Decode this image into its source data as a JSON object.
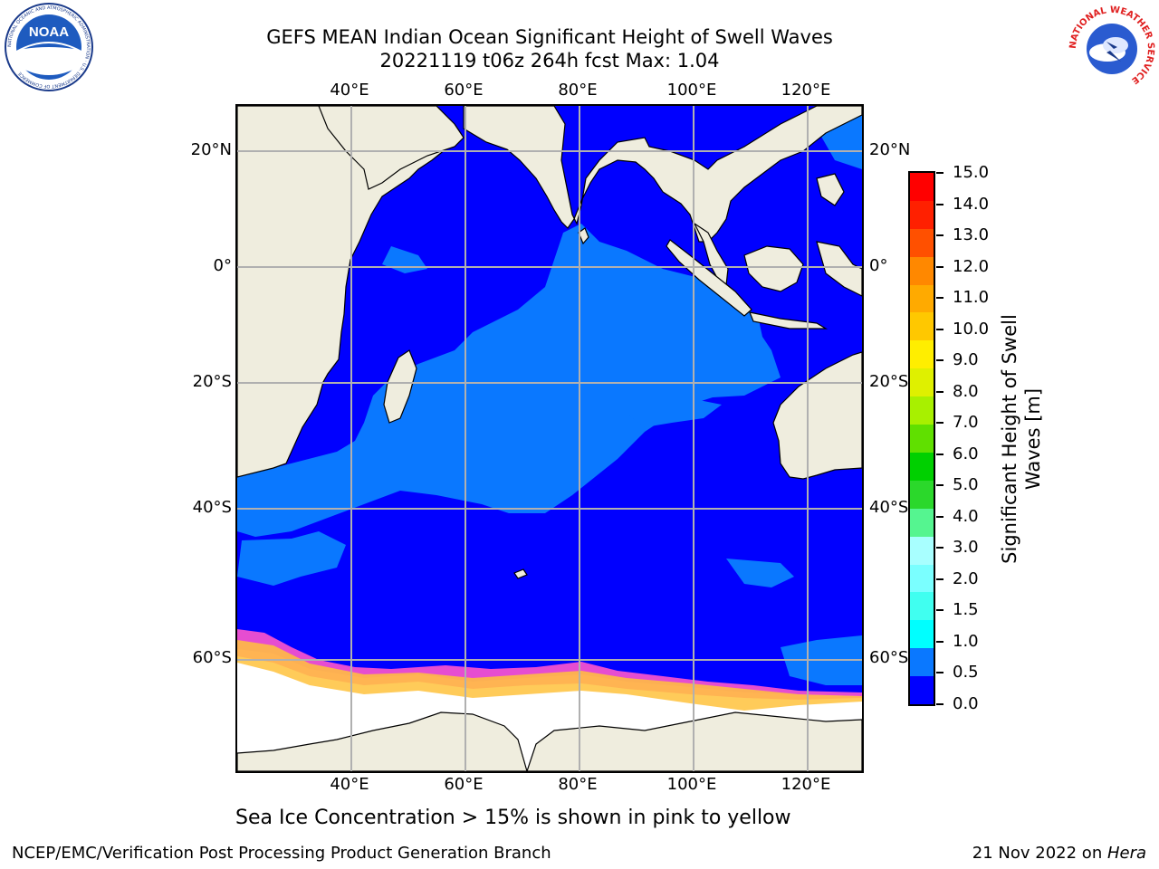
{
  "header": {
    "title_line1": "GEFS MEAN Indian Ocean Significant Height of Swell Waves",
    "title_line2": "20221119 t06z 264h fcst   Max: 1.04"
  },
  "logos": {
    "left": {
      "name": "NOAA",
      "ring_text": "NATIONAL OCEANIC AND ATMOSPHERIC ADMINISTRATION · U.S. DEPARTMENT OF COMMERCE"
    },
    "right": {
      "name": "NATIONAL WEATHER SERVICE",
      "ring_text": "NATIONAL WEATHER SERVICE"
    }
  },
  "map": {
    "region": "Indian Ocean",
    "lon_range": [
      20,
      130
    ],
    "lat_range": [
      -73,
      27
    ],
    "lon_ticks": [
      "40°E",
      "60°E",
      "80°E",
      "100°E",
      "120°E"
    ],
    "lat_ticks": [
      "20°N",
      "0°",
      "20°S",
      "40°S",
      "60°S"
    ],
    "colors": {
      "land": "#efedde",
      "swell_0_0.5": "#0000ff",
      "swell_0.5_1.0": "#0a78ff",
      "sea_ice": "#ffffff",
      "ice_edge_pink": "#ff55cc",
      "ice_edge_yellow": "#ffc23c",
      "grid": "#b0b0b0"
    },
    "note": "Sea Ice Concentration > 15% is shown in pink to yellow"
  },
  "colorbar": {
    "title": "Significant Height of Swell Waves [m]",
    "labels": [
      "0.0",
      "0.5",
      "1.0",
      "1.5",
      "2.0",
      "3.0",
      "4.0",
      "5.0",
      "6.0",
      "7.0",
      "8.0",
      "9.0",
      "10.0",
      "11.0",
      "12.0",
      "13.0",
      "14.0",
      "15.0"
    ],
    "colors": [
      "#0000ff",
      "#0a78ff",
      "#00ffff",
      "#40fff0",
      "#7affff",
      "#a8ffff",
      "#55f590",
      "#2bd82b",
      "#00d000",
      "#60e000",
      "#a8f000",
      "#dff000",
      "#ffee00",
      "#ffc800",
      "#ffaa00",
      "#ff8800",
      "#ff5000",
      "#ff2000",
      "#ff0000"
    ]
  },
  "footer": {
    "left": "NCEP/EMC/Verification Post Processing Product Generation Branch",
    "right_date": "21 Nov 2022 on ",
    "right_host": "Hera"
  }
}
